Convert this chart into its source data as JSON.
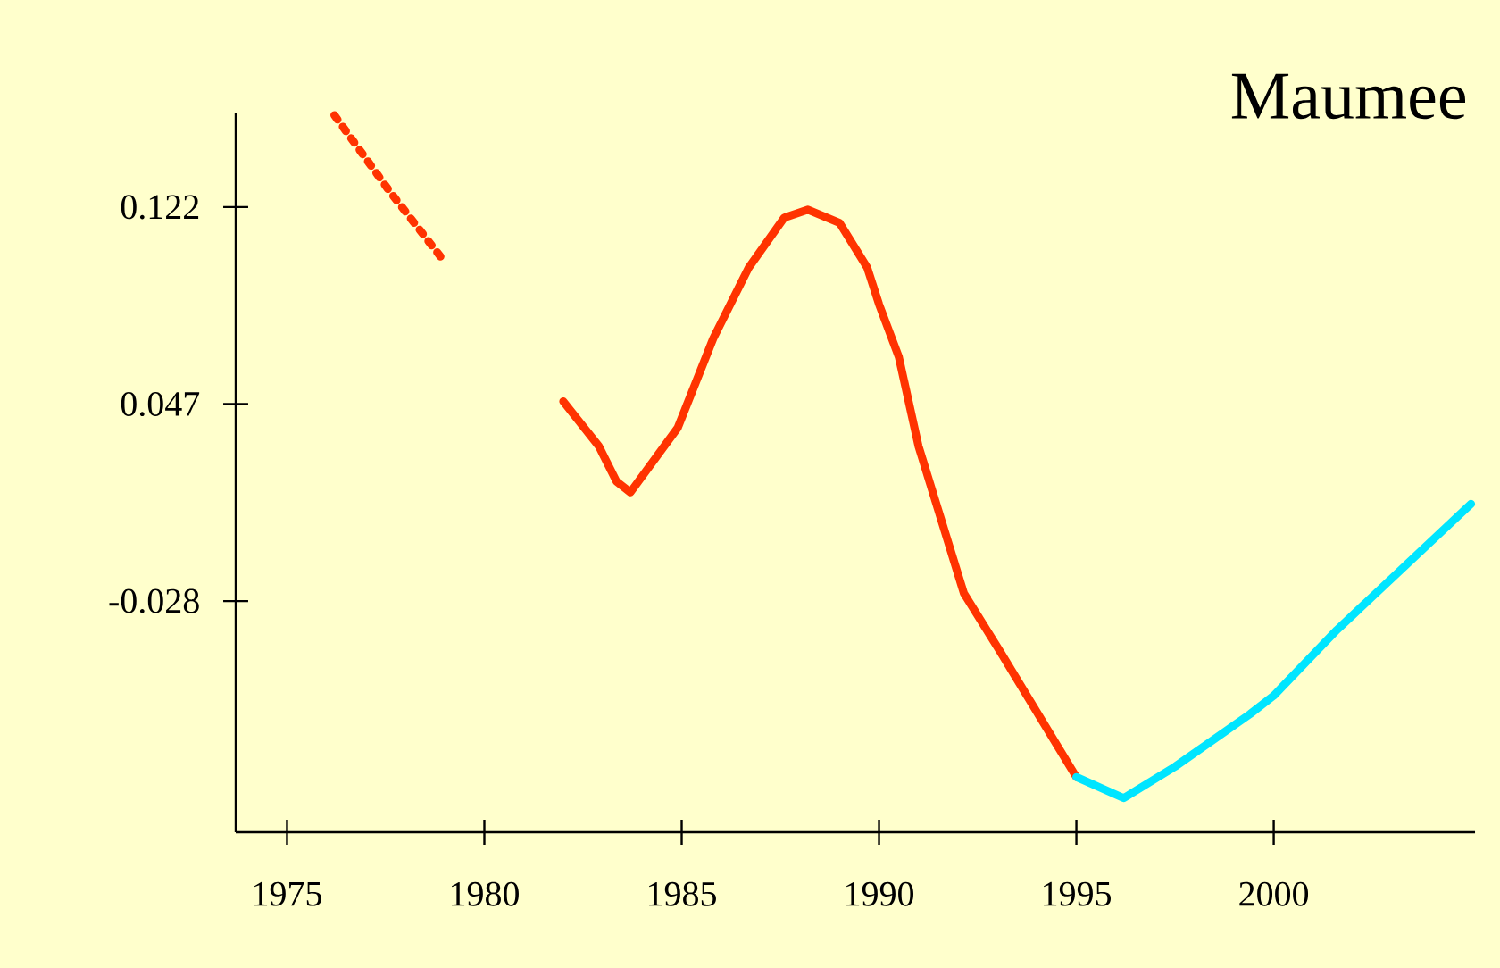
{
  "chart_data": {
    "type": "line",
    "title": "Maumee",
    "xlim": [
      1973.7,
      2005.1
    ],
    "ylim": [
      -0.116,
      0.158
    ],
    "xticks": [
      1975,
      1980,
      1985,
      1990,
      1995,
      2000
    ],
    "yticks": [
      -0.028,
      0.047,
      0.122
    ],
    "grid": false,
    "marker": "none",
    "series": [
      {
        "color": "#ff3300",
        "line_style": "dotted",
        "x": [
          1976.2,
          1977.6,
          1979.0
        ],
        "values": [
          0.157,
          0.128,
          0.101
        ]
      },
      {
        "color": "#ff3300",
        "line_style": "solid",
        "x": [
          1982.0,
          1982.9,
          1983.35,
          1983.7,
          1984.9,
          1985.8,
          1986.7,
          1987.6,
          1988.2,
          1989.0,
          1989.7,
          1990.0,
          1990.5,
          1991.0,
          1992.15,
          1993.1,
          1995.0
        ],
        "values": [
          0.048,
          0.031,
          0.0175,
          0.0134,
          0.038,
          0.072,
          0.099,
          0.118,
          0.121,
          0.116,
          0.099,
          0.085,
          0.065,
          0.031,
          -0.025,
          -0.048,
          -0.095
        ]
      },
      {
        "color": "#00e5ff",
        "line_style": "solid",
        "x": [
          1995.0,
          1996.2,
          1997.5,
          1999.4,
          2000.0,
          2001.6,
          2005.0
        ],
        "values": [
          -0.095,
          -0.103,
          -0.091,
          -0.071,
          -0.064,
          -0.039,
          0.009
        ]
      }
    ]
  }
}
